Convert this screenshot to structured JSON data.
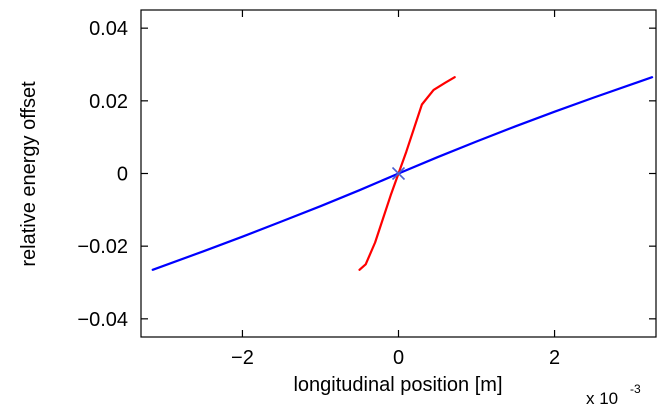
{
  "chart_data": {
    "type": "line",
    "title": "",
    "xlabel": "longitudinal position [m]",
    "ylabel": "relative energy offset",
    "x_scale_label": "x 10",
    "x_scale_exponent": "-3",
    "x_scale_factor": 0.001,
    "xlim": [
      -3.3,
      3.3
    ],
    "ylim": [
      -0.045,
      0.045
    ],
    "xticks": [
      -2,
      0,
      2
    ],
    "xtick_labels": [
      "−2",
      "0",
      "2"
    ],
    "yticks": [
      -0.04,
      -0.02,
      0,
      0.02,
      0.04
    ],
    "ytick_labels": [
      "−0.04",
      "−0.02",
      "0",
      "0.02",
      "0.04"
    ],
    "grid": false,
    "series": [
      {
        "color": "#0000ff",
        "x": [
          -3.15,
          -2.5,
          -2.0,
          -1.5,
          -1.0,
          -0.5,
          0.0,
          0.5,
          1.0,
          1.5,
          2.0,
          2.5,
          3.25
        ],
        "y": [
          -0.0265,
          -0.0214,
          -0.0174,
          -0.0132,
          -0.009,
          -0.0046,
          0.0,
          0.0045,
          0.0088,
          0.013,
          0.017,
          0.0209,
          0.0265
        ]
      },
      {
        "color": "#ff0000",
        "x": [
          -0.5,
          -0.42,
          -0.3,
          -0.2,
          -0.1,
          0.0,
          0.1,
          0.2,
          0.3,
          0.45,
          0.6,
          0.72
        ],
        "y": [
          -0.0265,
          -0.025,
          -0.019,
          -0.0125,
          -0.006,
          0.0,
          0.006,
          0.0125,
          0.019,
          0.023,
          0.025,
          0.0265
        ]
      }
    ],
    "markers": [
      {
        "symbol": "×",
        "color": "#4a5fd0",
        "x": 0.0,
        "y": 0.0
      }
    ]
  }
}
